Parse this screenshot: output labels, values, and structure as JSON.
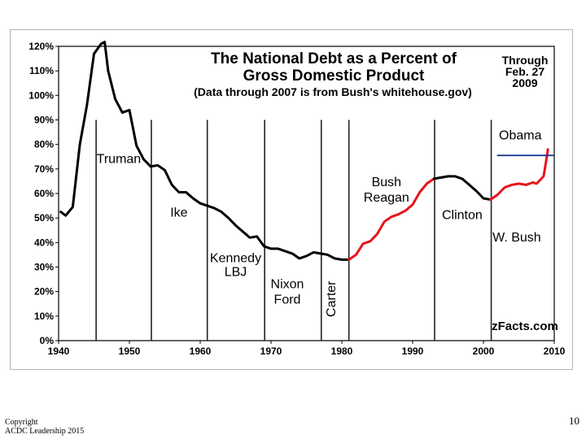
{
  "chart_data": {
    "type": "line",
    "title_line1": "The National Debt as a Percent of",
    "title_line2": "Gross Domestic Product",
    "subtitle": "(Data through 2007 is from Bush's whitehouse.gov)",
    "through_line1": "Through",
    "through_line2": "Feb. 27",
    "through_line3": "2009",
    "source": "zFacts.com",
    "xlim": [
      1940,
      2010
    ],
    "ylim": [
      0,
      120
    ],
    "x_ticks": [
      1940,
      1950,
      1960,
      1970,
      1980,
      1990,
      2000,
      2010
    ],
    "y_ticks": [
      0,
      10,
      20,
      30,
      40,
      50,
      60,
      70,
      80,
      90,
      100,
      110,
      120
    ],
    "y_tick_labels": [
      "0%",
      "10%",
      "20%",
      "30%",
      "40%",
      "50%",
      "60%",
      "70%",
      "80%",
      "90%",
      "100%",
      "110%",
      "120%"
    ],
    "x_tick_labels": [
      "1940",
      "1950",
      "1960",
      "1970",
      "1980",
      "1990",
      "2000",
      "2010"
    ],
    "era_dividers": [
      1945.3,
      1953.1,
      1961.0,
      1969.1,
      1977.1,
      1981.0,
      1993.1,
      2001.1
    ],
    "divider_top": 90,
    "colors": {
      "line": "#000000",
      "republican": "#e8141b",
      "obama_line": "#1f3a93",
      "divider": "#222222"
    },
    "eras": [
      {
        "name": "truman",
        "lines": [
          "Truman"
        ],
        "x": 1948.5,
        "y": 72.5,
        "size": 16
      },
      {
        "name": "ike",
        "lines": [
          "Ike"
        ],
        "x": 1957.0,
        "y": 50.5,
        "size": 16
      },
      {
        "name": "kennedy-lbj",
        "lines": [
          "Kennedy",
          "LBJ"
        ],
        "x": 1965.0,
        "y": 32.0,
        "size": 14
      },
      {
        "name": "nixon-ford",
        "lines": [
          "Nixon",
          "Ford"
        ],
        "x": 1972.3,
        "y": 21.3,
        "size": 16
      },
      {
        "name": "bush-reagan",
        "lines": [
          "Bush",
          "Reagan"
        ],
        "x": 1986.3,
        "y": 63.0,
        "size": 16
      },
      {
        "name": "clinton",
        "lines": [
          "Clinton"
        ],
        "x": 1997.0,
        "y": 49.5,
        "size": 16
      },
      {
        "name": "w-bush",
        "lines": [
          "W. Bush"
        ],
        "x": 2004.7,
        "y": 40.5,
        "size": 16
      },
      {
        "name": "obama",
        "lines": [
          "Obama"
        ],
        "x": 2005.2,
        "y": 82.0,
        "size": 16
      }
    ],
    "carter_label": "Carter",
    "carter_pos": {
      "x": 1979.1,
      "y": 17.0
    },
    "series": [
      {
        "name": "debt-pre-1981",
        "x": [
          1940.3,
          1941,
          1942,
          1943,
          1944,
          1945,
          1946,
          1946.5,
          1947,
          1948,
          1949,
          1950,
          1951,
          1952,
          1953,
          1954,
          1955,
          1956,
          1957,
          1958,
          1959,
          1960,
          1961,
          1962,
          1963,
          1964,
          1965,
          1966,
          1967,
          1968,
          1969,
          1970,
          1971,
          1972,
          1973,
          1974,
          1975,
          1976,
          1977,
          1978,
          1979,
          1980,
          1981
        ],
        "values": [
          52.5,
          51,
          54.5,
          80,
          96,
          117,
          121,
          121.8,
          110,
          98.5,
          93,
          94,
          79.5,
          74,
          71,
          71.5,
          69.5,
          63.5,
          60.5,
          60.5,
          58,
          56,
          55,
          54,
          52.5,
          50,
          47,
          44.5,
          42,
          42.5,
          38.5,
          37.5,
          37.5,
          36.5,
          35.5,
          33.5,
          34.5,
          36,
          35.5,
          35,
          33.5,
          33,
          33
        ]
      },
      {
        "name": "debt-reagan-bush",
        "x": [
          1981,
          1982,
          1983,
          1984,
          1985,
          1986,
          1987,
          1988,
          1989,
          1990,
          1991,
          1992,
          1993
        ],
        "values": [
          33,
          35,
          39.5,
          40.5,
          43.5,
          48.5,
          50.5,
          51.5,
          53,
          55.5,
          60.5,
          64,
          66
        ]
      },
      {
        "name": "debt-clinton",
        "x": [
          1993,
          1994,
          1995,
          1996,
          1997,
          1998,
          1999,
          2000,
          2001
        ],
        "values": [
          66,
          66.5,
          67,
          67,
          66,
          63.5,
          61,
          58,
          57.5
        ]
      },
      {
        "name": "debt-w-bush",
        "x": [
          2001,
          2002,
          2003,
          2004,
          2005,
          2006,
          2007,
          2007.5,
          2008,
          2008.5,
          2008.9,
          2009.1
        ],
        "values": [
          57.5,
          59.5,
          62.5,
          63.5,
          64,
          63.5,
          64.5,
          64,
          65.5,
          67,
          74,
          78
        ]
      },
      {
        "name": "obama-reference",
        "x": [
          2002.0,
          2010.0
        ],
        "values": [
          75.5,
          75.5
        ]
      }
    ]
  },
  "footer": {
    "copyright_line1": "Copyright",
    "copyright_line2": "ACDC Leadership 2015",
    "page_number": "10"
  }
}
